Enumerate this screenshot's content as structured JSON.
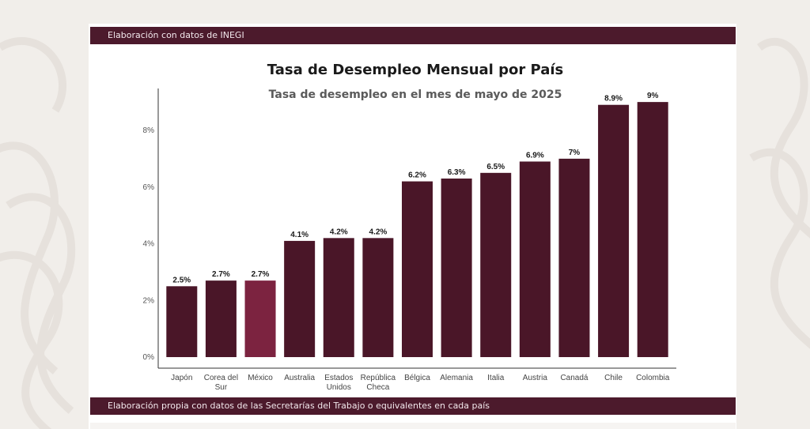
{
  "header": {
    "banner_text": "Elaboración con datos de INEGI"
  },
  "footer": {
    "banner_text": "Elaboración propia con datos de las Secretarías del Trabajo o equivalentes en cada país"
  },
  "colors": {
    "bar": "#4a1628",
    "highlight": "#7c2340",
    "banner": "#4c1a2c"
  },
  "chart_data": {
    "type": "bar",
    "title": "Tasa de Desempleo Mensual por País",
    "subtitle": "Tasa de desempleo en el mes de mayo de 2025",
    "xlabel": "",
    "ylabel": "",
    "ylim": [
      0,
      9.5
    ],
    "yticks": [
      0,
      2,
      4,
      6,
      8
    ],
    "ytick_labels": [
      "0%",
      "2%",
      "4%",
      "6%",
      "8%"
    ],
    "grid": false,
    "categories": [
      [
        "Japón"
      ],
      [
        "Corea del",
        "Sur"
      ],
      [
        "México"
      ],
      [
        "Australia"
      ],
      [
        "Estados",
        "Unidos"
      ],
      [
        "República",
        "Checa"
      ],
      [
        "Bélgica"
      ],
      [
        "Alemania"
      ],
      [
        "Italia"
      ],
      [
        "Austria"
      ],
      [
        "Canadá"
      ],
      [
        "Chile"
      ],
      [
        "Colombia"
      ]
    ],
    "values": [
      2.5,
      2.7,
      2.7,
      4.1,
      4.2,
      4.2,
      6.2,
      6.3,
      6.5,
      6.9,
      7,
      8.9,
      9
    ],
    "value_labels": [
      "2.5%",
      "2.7%",
      "2.7%",
      "4.1%",
      "4.2%",
      "4.2%",
      "6.2%",
      "6.3%",
      "6.5%",
      "6.9%",
      "7%",
      "8.9%",
      "9%"
    ],
    "highlight_index": 2
  }
}
